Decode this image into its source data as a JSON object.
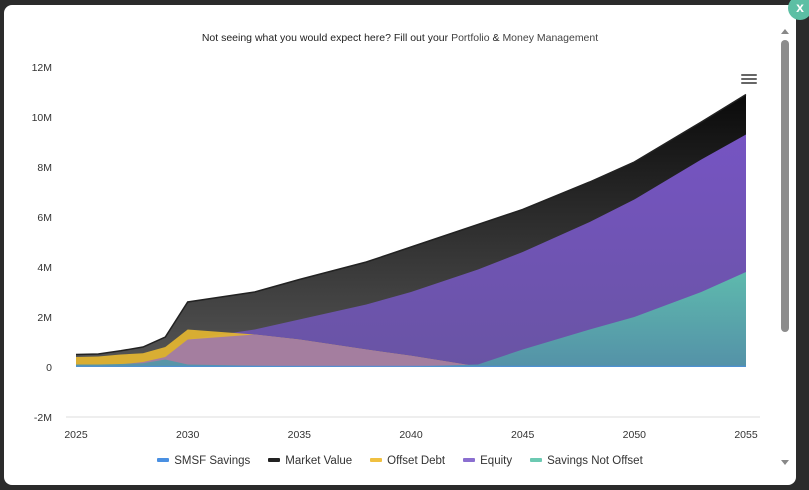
{
  "notice": {
    "text": "Not seeing what you would expect here? Fill out your ",
    "link1": "Portfolio",
    "amp": " & ",
    "link2": "Money Management"
  },
  "close_label": "x",
  "icons": {
    "menu": "hamburger-menu-icon",
    "close": "close-icon",
    "scroll_up": "triangle-up-icon",
    "scroll_down": "triangle-down-icon"
  },
  "chart_data": {
    "type": "area",
    "title": "",
    "xlabel": "",
    "ylabel": "",
    "ylim": [
      -2,
      12
    ],
    "xlim": [
      2025,
      2055
    ],
    "y_ticks": [
      "-2M",
      "0",
      "2M",
      "4M",
      "6M",
      "8M",
      "10M",
      "12M"
    ],
    "y_tick_values": [
      -2,
      0,
      2,
      4,
      6,
      8,
      10,
      12
    ],
    "x_ticks": [
      "2025",
      "2030",
      "2035",
      "2040",
      "2045",
      "2050",
      "2055"
    ],
    "x_tick_values": [
      2025,
      2030,
      2035,
      2040,
      2045,
      2050,
      2055
    ],
    "grid": false,
    "legend_position": "bottom",
    "x": [
      2025,
      2026,
      2027,
      2028,
      2029,
      2030,
      2033,
      2035,
      2038,
      2040,
      2043,
      2045,
      2048,
      2050,
      2053,
      2055
    ],
    "series": [
      {
        "name": "Market Value",
        "color": "#111111",
        "values": [
          0.5,
          0.52,
          0.65,
          0.8,
          1.2,
          2.6,
          3.0,
          3.5,
          4.2,
          4.8,
          5.7,
          6.3,
          7.4,
          8.2,
          9.8,
          10.9
        ]
      },
      {
        "name": "Equity",
        "color": "#7a5cc8",
        "values": [
          0.05,
          0.06,
          0.1,
          0.2,
          0.4,
          1.1,
          1.5,
          1.9,
          2.5,
          3.0,
          3.9,
          4.6,
          5.8,
          6.7,
          8.3,
          9.3
        ]
      },
      {
        "name": "Offset Debt",
        "color": "#f0c040",
        "values": [
          0.4,
          0.42,
          0.5,
          0.55,
          0.8,
          1.5,
          1.3,
          1.1,
          0.7,
          0.45,
          0.02,
          0.0,
          0.0,
          0.0,
          0.0,
          0.0
        ]
      },
      {
        "name": "Savings Not Offset",
        "color": "#5cc0a8",
        "values": [
          0.1,
          0.1,
          0.12,
          0.15,
          0.3,
          0.1,
          0.05,
          0.03,
          0.02,
          0.02,
          0.1,
          0.7,
          1.5,
          2.0,
          3.0,
          3.8
        ]
      },
      {
        "name": "SMSF Savings",
        "color": "#4a90e2",
        "values": [
          0.05,
          0.05,
          0.05,
          0.05,
          0.05,
          0.05,
          0.05,
          0.05,
          0.05,
          0.05,
          0.05,
          0.05,
          0.05,
          0.05,
          0.05,
          0.05
        ]
      }
    ],
    "legend": [
      {
        "name": "SMSF Savings",
        "color": "#4a90e2"
      },
      {
        "name": "Market Value",
        "color": "#222222"
      },
      {
        "name": "Offset Debt",
        "color": "#f0c040"
      },
      {
        "name": "Equity",
        "color": "#8b6fd0"
      },
      {
        "name": "Savings Not Offset",
        "color": "#6cc9b2"
      }
    ]
  }
}
